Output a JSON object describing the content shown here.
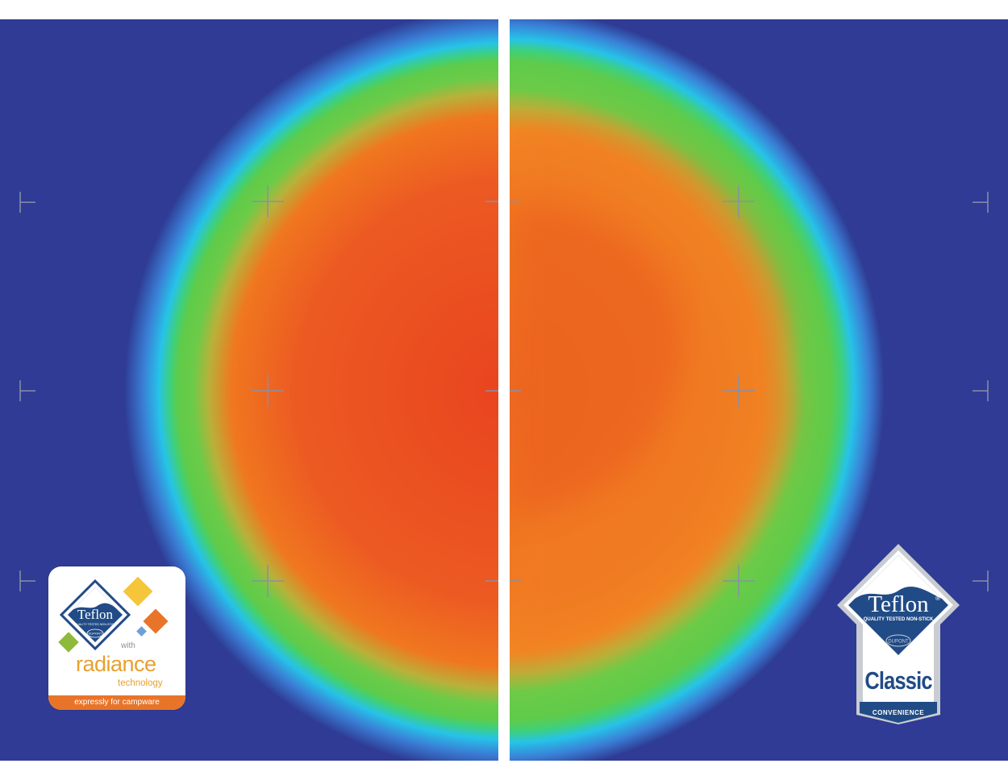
{
  "colors": {
    "background": "#2f3b94",
    "glow_cyan": "#26c3e8",
    "ring_green": "#5fcb4a",
    "hot_orange": "#f07a24",
    "hot_red": "#e84a22",
    "crosshair": "#7a7f9a"
  },
  "left_panel": {
    "name": "radiance heat map"
  },
  "right_panel": {
    "name": "classic heat map"
  },
  "badge_radiance": {
    "logo_text": "Teflon",
    "logo_subtext": "QUALITY TESTED NON-STICK",
    "dupont": "DUPONT",
    "with": "with",
    "word": "radiance",
    "technology": "technology",
    "tagline": "expressly for campware",
    "accent_colors": [
      "#f5c53a",
      "#e8742a",
      "#8dba3a",
      "#6fa0d8"
    ]
  },
  "badge_classic": {
    "logo_text": "Teflon",
    "logo_subtext": "QUALITY TESTED NON-STICK",
    "dupont": "DUPONT",
    "word": "Classic",
    "tagline": "CONVENIENCE",
    "colors": {
      "navy": "#214b86",
      "silver": "#c9ccd0"
    }
  }
}
